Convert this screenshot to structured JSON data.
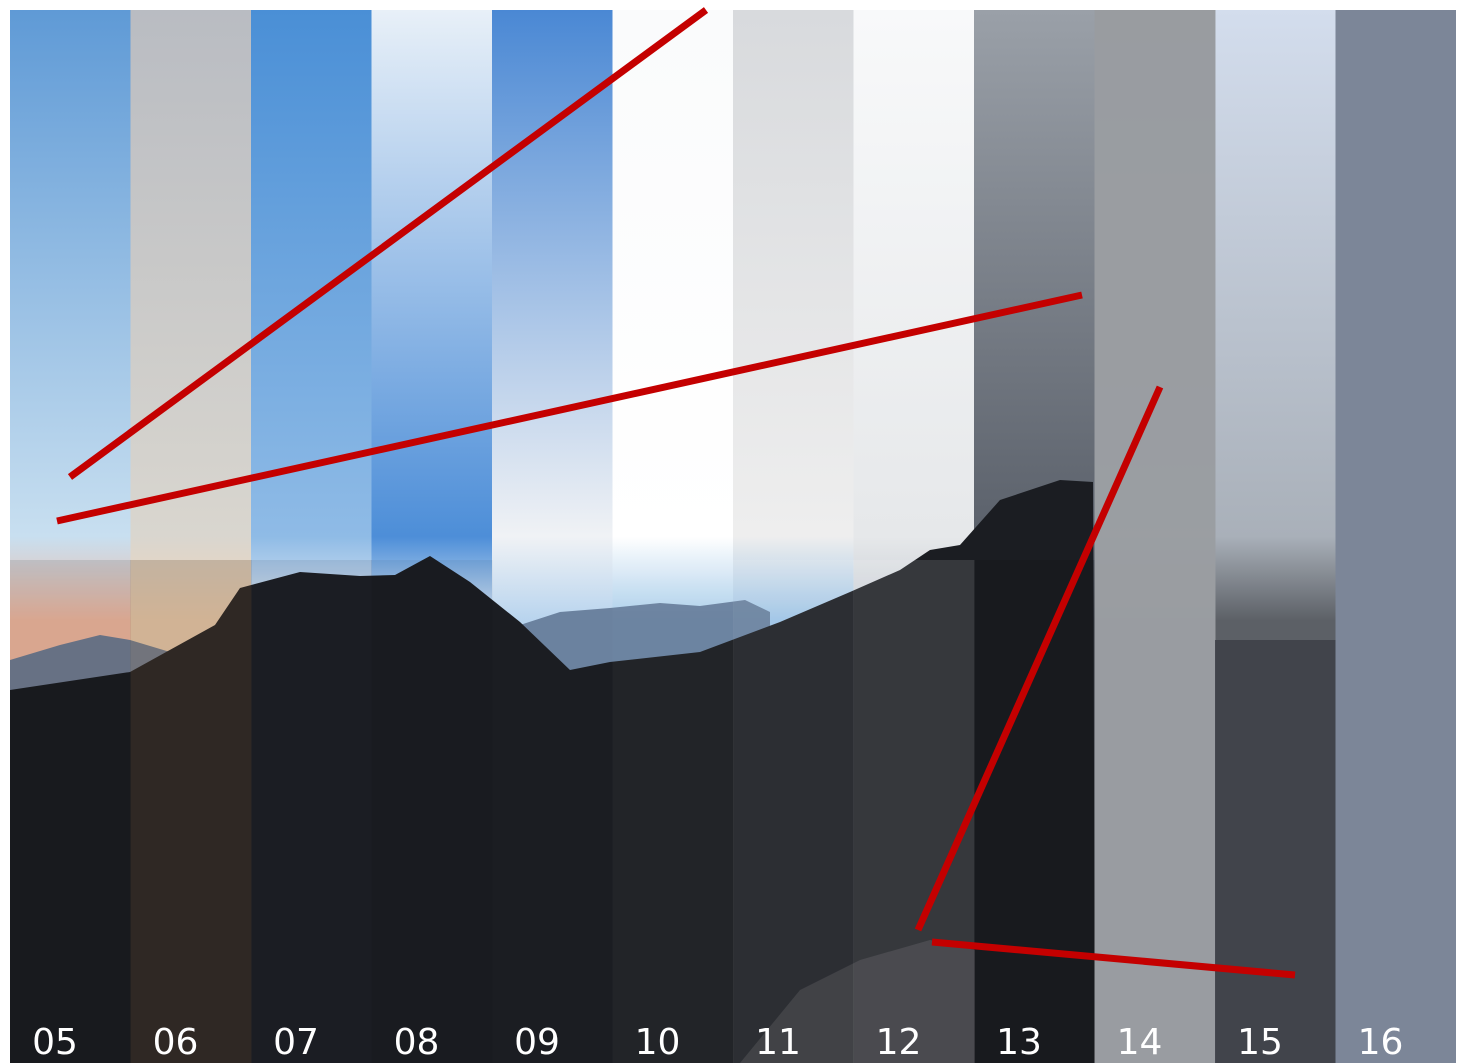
{
  "labels": [
    "05",
    "06",
    "07",
    "08",
    "09",
    "10",
    "11",
    "12",
    "13",
    "14",
    "15",
    "16"
  ]
}
